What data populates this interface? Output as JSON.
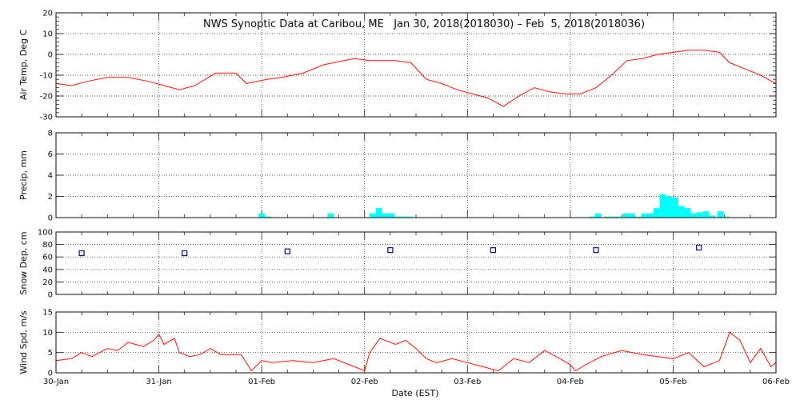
{
  "title": "NWS Synoptic Data at Caribou, ME   Jan 30, 2018(2018030) – Feb  5, 2018(2018036)",
  "xlabel": "Date (EST)",
  "x_ticks": [
    "30-Jan",
    "31-Jan",
    "01-Feb",
    "02-Feb",
    "03-Feb",
    "04-Feb",
    "05-Feb",
    "06-Feb"
  ],
  "colors": {
    "temp": "#ff0000",
    "precip": "#00ffff",
    "snow": "#000080",
    "wind": "#ff0000"
  },
  "chart_data": [
    {
      "type": "line",
      "ylabel": "Air Temp, Deg C",
      "ylim": [
        -30,
        20
      ],
      "yticks": [
        20,
        10,
        0,
        -10,
        -20,
        -30
      ],
      "xlim": [
        0,
        7
      ],
      "x_unit": "days since 30-Jan 00:00 EST",
      "grid": true,
      "x": [
        0,
        0.15,
        0.3,
        0.5,
        0.7,
        0.9,
        1.05,
        1.2,
        1.35,
        1.55,
        1.75,
        1.85,
        1.95,
        2.05,
        2.2,
        2.4,
        2.6,
        2.8,
        2.9,
        3.05,
        3.2,
        3.3,
        3.45,
        3.6,
        3.75,
        3.9,
        4.05,
        4.2,
        4.35,
        4.5,
        4.65,
        4.8,
        4.95,
        5.1,
        5.25,
        5.4,
        5.55,
        5.7,
        5.85,
        6.0,
        6.15,
        6.3,
        6.45,
        6.55,
        6.7,
        6.85,
        7.0
      ],
      "y": [
        -14,
        -15,
        -13,
        -11,
        -11,
        -13,
        -15,
        -17,
        -15,
        -9,
        -9,
        -14,
        -13,
        -12,
        -11,
        -9,
        -5,
        -3,
        -2,
        -3,
        -3,
        -3,
        -4,
        -12,
        -14,
        -17,
        -19,
        -21,
        -25,
        -20,
        -16,
        -18,
        -19,
        -19,
        -16,
        -10,
        -3,
        -2,
        0,
        1,
        2,
        2,
        1,
        -4,
        -7,
        -10,
        -14
      ]
    },
    {
      "type": "bar",
      "ylabel": "Precip, mm",
      "ylim": [
        0,
        8
      ],
      "yticks": [
        0,
        2,
        4,
        6,
        8
      ],
      "xlim": [
        0,
        7
      ],
      "grid": true,
      "x": [
        2.0,
        2.06,
        2.67,
        3.08,
        3.14,
        3.2,
        3.26,
        3.32,
        3.38,
        3.44,
        5.21,
        5.27,
        5.36,
        5.42,
        5.48,
        5.54,
        5.6,
        5.66,
        5.72,
        5.78,
        5.84,
        5.9,
        5.96,
        6.02,
        6.08,
        6.14,
        6.2,
        6.26,
        6.32,
        6.38,
        6.46,
        6.52
      ],
      "values": [
        0.4,
        0.1,
        0.4,
        0.4,
        0.9,
        0.4,
        0.4,
        0.1,
        0.1,
        0.1,
        0.1,
        0.4,
        0.1,
        0.1,
        0.1,
        0.4,
        0.4,
        0.1,
        0.4,
        0.4,
        0.9,
        2.2,
        2.0,
        1.9,
        1.1,
        0.9,
        0.4,
        0.5,
        0.6,
        0.2,
        0.6,
        0.1
      ]
    },
    {
      "type": "scatter",
      "ylabel": "Snow Dep, cm",
      "ylim": [
        0,
        100
      ],
      "yticks": [
        0,
        20,
        40,
        60,
        80,
        100
      ],
      "xlim": [
        0,
        7
      ],
      "grid": true,
      "x": [
        0.25,
        1.25,
        2.25,
        3.25,
        4.25,
        5.25,
        6.25
      ],
      "y": [
        66,
        66,
        69,
        71,
        71,
        71,
        75
      ]
    },
    {
      "type": "line",
      "ylabel": "Wind Spd, m/s",
      "ylim": [
        0,
        15
      ],
      "yticks": [
        0,
        5,
        10,
        15
      ],
      "xlim": [
        0,
        7
      ],
      "grid": true,
      "x": [
        0,
        0.15,
        0.25,
        0.35,
        0.5,
        0.6,
        0.7,
        0.85,
        0.95,
        1.0,
        1.05,
        1.15,
        1.2,
        1.3,
        1.4,
        1.5,
        1.6,
        1.8,
        1.9,
        2.0,
        2.1,
        2.3,
        2.5,
        2.7,
        2.9,
        3.0,
        3.05,
        3.15,
        3.3,
        3.4,
        3.5,
        3.6,
        3.7,
        3.85,
        4.0,
        4.15,
        4.3,
        4.45,
        4.6,
        4.75,
        4.9,
        5.0,
        5.05,
        5.15,
        5.3,
        5.5,
        5.7,
        5.85,
        6.0,
        6.15,
        6.3,
        6.45,
        6.55,
        6.65,
        6.75,
        6.85,
        6.95,
        7.0
      ],
      "y": [
        3,
        3.5,
        5,
        4,
        6,
        5.5,
        7.5,
        6.5,
        8,
        9.5,
        7,
        8.5,
        5,
        4,
        4.5,
        6,
        4.5,
        4.5,
        0.5,
        3,
        2.5,
        3,
        2.5,
        3.5,
        1.5,
        0.5,
        5,
        8.5,
        7,
        8,
        6,
        3.5,
        2.5,
        3.5,
        2.5,
        1.5,
        0.5,
        3.5,
        2.5,
        5.5,
        3.5,
        2,
        0.5,
        2,
        4,
        5.5,
        4.5,
        4,
        3.5,
        5,
        1.5,
        3,
        10,
        8,
        2.5,
        6,
        1.5,
        2.5
      ]
    }
  ]
}
